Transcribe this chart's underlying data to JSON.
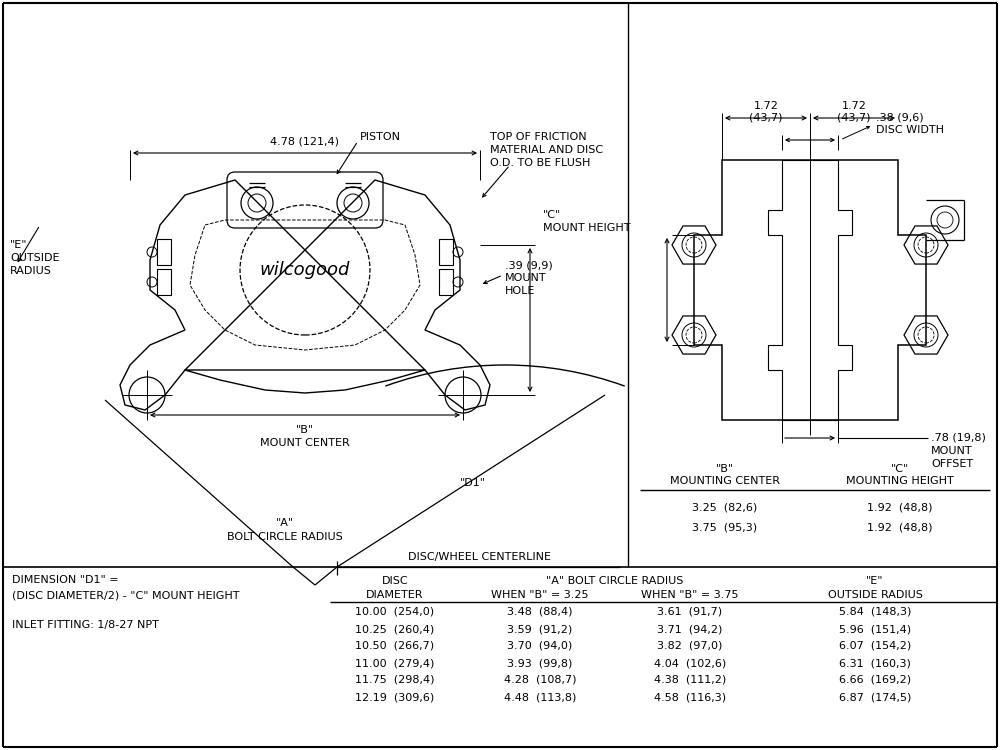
{
  "bg_color": "#ffffff",
  "dim_4_78": "4.78 (121,4)",
  "dim_0_38": ".38 (9,6)",
  "dim_disc_width": "DISC WIDTH",
  "dim_1_72": "1.72",
  "dim_43_7": "(43,7)",
  "dim_0_78": ".78 (19,8)",
  "dim_mount_offset_1": "MOUNT",
  "dim_mount_offset_2": "OFFSET",
  "label_piston": "PISTON",
  "label_mount_hole_0": ".39 (9,9)",
  "label_mount_hole_1": "MOUNT",
  "label_mount_hole_2": "HOLE",
  "label_c_mount_0": "\"C\"",
  "label_c_mount_1": "MOUNT HEIGHT",
  "label_e_outside_0": "\"E\"",
  "label_e_outside_1": "OUTSIDE",
  "label_e_outside_2": "RADIUS",
  "label_b_mount_0": "\"B\"",
  "label_b_mount_1": "MOUNT CENTER",
  "label_d1": "\"D1\"",
  "label_a_bolt_0": "\"A\"",
  "label_a_bolt_1": "BOLT CIRCLE RADIUS",
  "label_disc_centerline": "DISC/WHEEL CENTERLINE",
  "label_top_friction_0": "TOP OF FRICTION",
  "label_top_friction_1": "MATERIAL AND DISC",
  "label_top_friction_2": "O.D. TO BE FLUSH",
  "table1_col1_h0": "\"B\"",
  "table1_col1_h1": "MOUNTING CENTER",
  "table1_col2_h0": "\"C\"",
  "table1_col2_h1": "MOUNTING HEIGHT",
  "table1_rows": [
    [
      "3.25  (82,6)",
      "1.92  (48,8)"
    ],
    [
      "3.75  (95,3)",
      "1.92  (48,8)"
    ]
  ],
  "dim_formula_line1": "DIMENSION \"D1\" =",
  "dim_formula_line2": "(DISC DIAMETER/2) - \"C\" MOUNT HEIGHT",
  "inlet_fitting": "INLET FITTING: 1/8-27 NPT",
  "table2_h1_col1": "DISC",
  "table2_h1_col2": "\"A\" BOLT CIRCLE RADIUS",
  "table2_h1_col4": "\"E\"",
  "table2_h2_col1": "DIAMETER",
  "table2_h2_col2": "WHEN \"B\" = 3.25",
  "table2_h2_col3": "WHEN \"B\" = 3.75",
  "table2_h2_col4": "OUTSIDE RADIUS",
  "table2_rows": [
    [
      "10.00  (254,0)",
      "3.48  (88,4)",
      "3.61  (91,7)",
      "5.84  (148,3)"
    ],
    [
      "10.25  (260,4)",
      "3.59  (91,2)",
      "3.71  (94,2)",
      "5.96  (151,4)"
    ],
    [
      "10.50  (266,7)",
      "3.70  (94,0)",
      "3.82  (97,0)",
      "6.07  (154,2)"
    ],
    [
      "11.00  (279,4)",
      "3.93  (99,8)",
      "4.04  (102,6)",
      "6.31  (160,3)"
    ],
    [
      "11.75  (298,4)",
      "4.28  (108,7)",
      "4.38  (111,2)",
      "6.66  (169,2)"
    ],
    [
      "12.19  (309,6)",
      "4.48  (113,8)",
      "4.58  (116,3)",
      "6.87  (174,5)"
    ]
  ]
}
